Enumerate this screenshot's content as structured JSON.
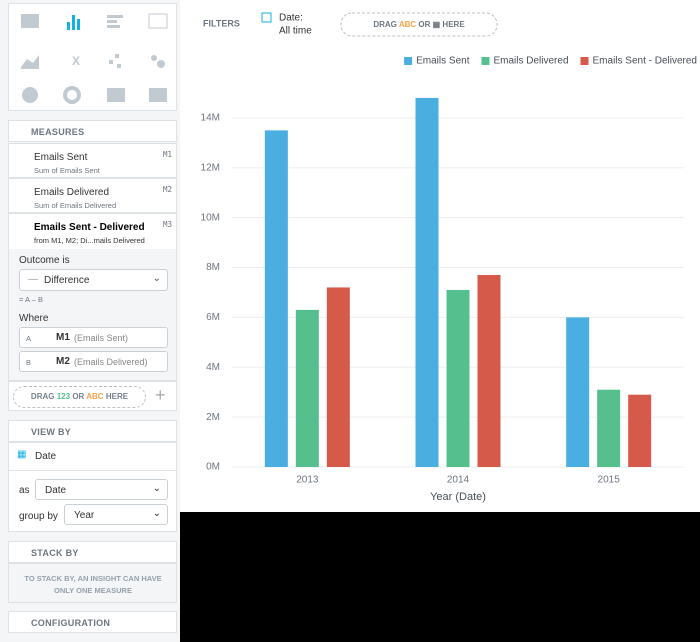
{
  "toolbar": {
    "filters_label": "FILTERS",
    "date_label": "Date:",
    "date_value": "All time",
    "drag": "DRAG",
    "abc": "ABC",
    "or": "OR",
    "here": "HERE"
  },
  "measures": {
    "title": "MEASURES",
    "items": [
      {
        "name": "Emails Sent",
        "sub": "Sum of Emails Sent",
        "id": "M1"
      },
      {
        "name": "Emails Delivered",
        "sub": "Sum of Emails Delivered",
        "id": "M2"
      },
      {
        "name": "Emails Sent - Delivered",
        "sub": "from M1, M2; Di...mails Delivered",
        "id": "M3"
      }
    ]
  },
  "calc": {
    "outcome_label": "Outcome is",
    "operation": "Difference",
    "formula": "= A – B",
    "where_label": "Where",
    "operands": [
      {
        "letter": "A",
        "id": "M1",
        "name": "(Emails Sent)"
      },
      {
        "letter": "B",
        "id": "M2",
        "name": "(Emails Delivered)"
      }
    ]
  },
  "measure_drop": {
    "drag": "DRAG",
    "num": "123",
    "or": "OR",
    "abc": "ABC",
    "here": "HERE"
  },
  "view_by": {
    "title": "VIEW BY",
    "attribute": "Date",
    "as_label": "as",
    "as_value": "Date",
    "group_label": "group by",
    "group_value": "Year"
  },
  "stack_by": {
    "title": "STACK BY",
    "message": "TO STACK BY, AN INSIGHT CAN HAVE ONLY ONE MEASURE"
  },
  "configuration": {
    "title": "CONFIGURATION"
  },
  "chart_data": {
    "type": "bar",
    "x_label": "Year (Date)",
    "categories": [
      "2013",
      "2014",
      "2015"
    ],
    "series": [
      {
        "name": "Emails Sent",
        "color": "#4aaee0",
        "values": [
          13500000,
          14800000,
          6000000
        ]
      },
      {
        "name": "Emails Delivered",
        "color": "#55c08e",
        "values": [
          6300000,
          7100000,
          3100000
        ]
      },
      {
        "name": "Emails Sent - Delivered",
        "color": "#d65a4a",
        "values": [
          7200000,
          7700000,
          2900000
        ]
      }
    ],
    "ylim": [
      0,
      16000000
    ],
    "yticks": [
      {
        "value": 0,
        "label": "0M"
      },
      {
        "value": 2000000,
        "label": "2M"
      },
      {
        "value": 4000000,
        "label": "4M"
      },
      {
        "value": 6000000,
        "label": "6M"
      },
      {
        "value": 8000000,
        "label": "8M"
      },
      {
        "value": 10000000,
        "label": "10M"
      },
      {
        "value": 12000000,
        "label": "12M"
      },
      {
        "value": 14000000,
        "label": "14M"
      }
    ],
    "grid": true,
    "legend": "top-right"
  }
}
